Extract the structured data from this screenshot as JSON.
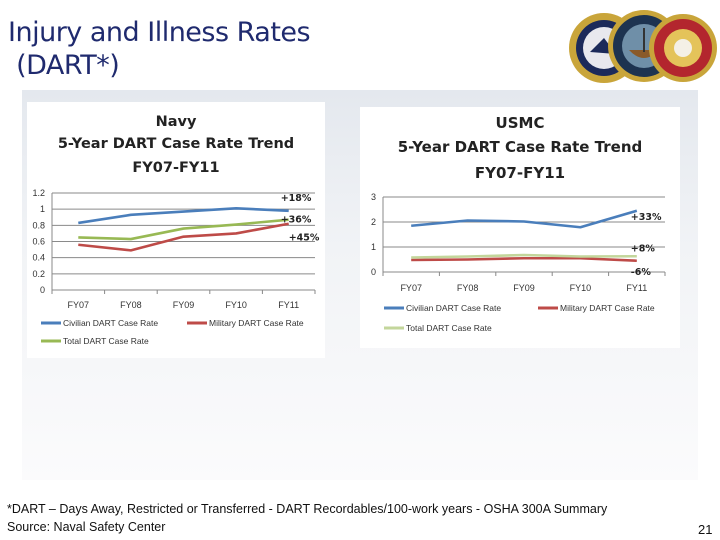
{
  "slide": {
    "title_line1": "Injury and Illness Rates",
    "title_line2": " (DART*)",
    "footnote": "*DART – Days Away, Restricted or Transferred - DART Recordables/100-work years - OSHA 300A  Summary",
    "source": "Source: Naval Safety Center",
    "page_number": "21",
    "logos": [
      "United States Navy seal",
      "Department of the Navy seal",
      "United States Marine Corps seal"
    ]
  },
  "chart_data": [
    {
      "type": "line",
      "title": [
        "Navy",
        "5-Year DART Case Rate Trend",
        "FY07-FY11"
      ],
      "categories": [
        "FY07",
        "FY08",
        "FY09",
        "FY10",
        "FY11"
      ],
      "ylim": [
        0,
        1.2
      ],
      "yticks": [
        "0",
        "0.2",
        "0.4",
        "0.6",
        "0.8",
        "1",
        "1.2"
      ],
      "grid": true,
      "legend": "bottom",
      "series": [
        {
          "name": "Civilian DART Case Rate",
          "color": "#4a7ebb",
          "values": [
            0.83,
            0.93,
            0.97,
            1.01,
            0.98
          ],
          "annotation": "+18%"
        },
        {
          "name": "Military DART Case Rate",
          "color": "#be4b48",
          "values": [
            0.56,
            0.49,
            0.66,
            0.7,
            0.82
          ],
          "annotation": "+45%"
        },
        {
          "name": "Total DART Case Rate",
          "color": "#98b954",
          "values": [
            0.65,
            0.63,
            0.76,
            0.81,
            0.87
          ],
          "annotation": "+36%"
        }
      ]
    },
    {
      "type": "line",
      "title": [
        "USMC",
        "5-Year DART Case Rate Trend",
        "FY07-FY11"
      ],
      "categories": [
        "FY07",
        "FY08",
        "FY09",
        "FY10",
        "FY11"
      ],
      "ylim": [
        0,
        3
      ],
      "yticks": [
        "0",
        "1",
        "2",
        "3"
      ],
      "grid": true,
      "legend": "bottom",
      "series": [
        {
          "name": "Civilian DART Case Rate",
          "color": "#4a7ebb",
          "values": [
            1.85,
            2.06,
            2.02,
            1.79,
            2.45
          ],
          "annotation": "+33%"
        },
        {
          "name": "Military DART Case Rate",
          "color": "#be4b48",
          "values": [
            0.48,
            0.5,
            0.55,
            0.55,
            0.45
          ],
          "annotation": "-6%"
        },
        {
          "name": "Total DART Case Rate",
          "color": "#c3d69b",
          "values": [
            0.58,
            0.62,
            0.68,
            0.62,
            0.63
          ],
          "annotation": "+8%"
        }
      ]
    }
  ]
}
